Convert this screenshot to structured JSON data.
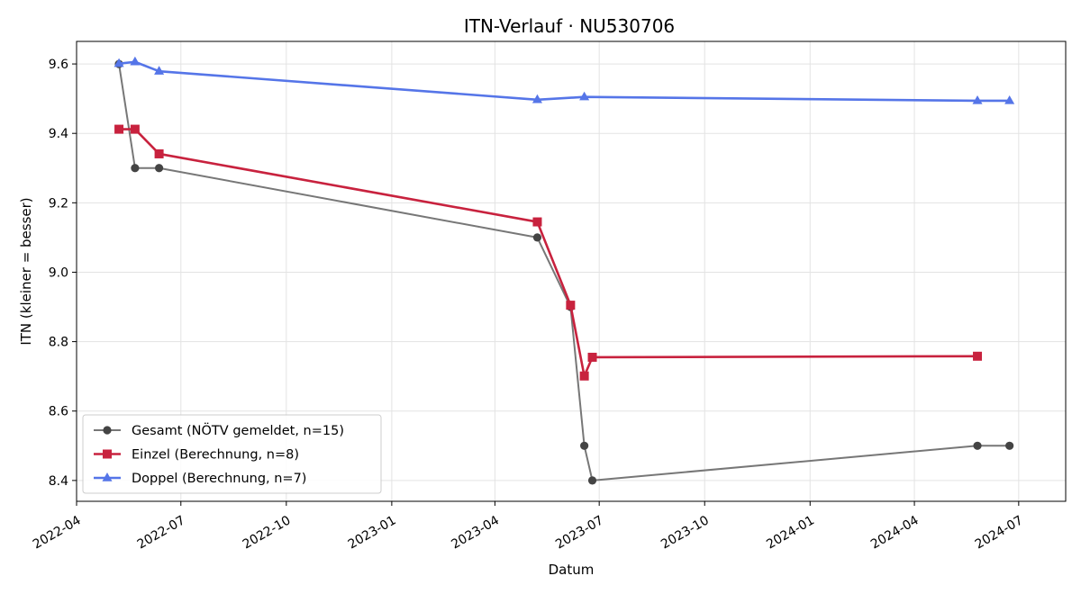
{
  "chart_data": {
    "type": "line",
    "title": "ITN-Verlauf · NU530706",
    "xlabel": "Datum",
    "ylabel": "ITN  (kleiner = besser)",
    "x_axis": "date",
    "xlim": [
      "2022-04-01",
      "2024-08-11"
    ],
    "ylim": [
      8.34,
      9.665
    ],
    "x_ticks": [
      "2022-04",
      "2022-07",
      "2022-10",
      "2023-01",
      "2023-04",
      "2023-07",
      "2023-10",
      "2024-01",
      "2024-04",
      "2024-07"
    ],
    "y_ticks": [
      8.4,
      8.6,
      8.8,
      9.0,
      9.2,
      9.4,
      9.6
    ],
    "grid": true,
    "legend_position": "lower-left",
    "series": [
      {
        "name": "Gesamt (NÖTV gemeldet, n=15)",
        "color": "#777777",
        "marker_color": "#444444",
        "marker": "circle",
        "points": [
          {
            "x": "2022-05-08",
            "y": 9.6
          },
          {
            "x": "2022-05-22",
            "y": 9.3
          },
          {
            "x": "2022-06-12",
            "y": 9.3
          },
          {
            "x": "2023-05-08",
            "y": 9.1
          },
          {
            "x": "2023-06-06",
            "y": 8.9
          },
          {
            "x": "2023-06-18",
            "y": 8.5
          },
          {
            "x": "2023-06-25",
            "y": 8.4
          },
          {
            "x": "2024-05-26",
            "y": 8.5
          },
          {
            "x": "2024-06-23",
            "y": 8.5
          }
        ]
      },
      {
        "name": "Einzel (Berechnung, n=8)",
        "color": "#c8223e",
        "marker_color": "#c8223e",
        "marker": "square",
        "points": [
          {
            "x": "2022-05-08",
            "y": 9.412
          },
          {
            "x": "2022-05-22",
            "y": 9.412
          },
          {
            "x": "2022-06-12",
            "y": 9.341
          },
          {
            "x": "2023-05-08",
            "y": 9.145
          },
          {
            "x": "2023-06-06",
            "y": 8.905
          },
          {
            "x": "2023-06-18",
            "y": 8.701
          },
          {
            "x": "2023-06-25",
            "y": 8.755
          },
          {
            "x": "2024-05-26",
            "y": 8.758
          }
        ]
      },
      {
        "name": "Doppel (Berechnung, n=7)",
        "color": "#5575e8",
        "marker_color": "#5575e8",
        "marker": "triangle",
        "points": [
          {
            "x": "2022-05-08",
            "y": 9.601
          },
          {
            "x": "2022-05-22",
            "y": 9.606
          },
          {
            "x": "2022-06-12",
            "y": 9.579
          },
          {
            "x": "2023-05-08",
            "y": 9.497
          },
          {
            "x": "2023-06-18",
            "y": 9.505
          },
          {
            "x": "2024-05-26",
            "y": 9.494
          },
          {
            "x": "2024-06-23",
            "y": 9.494
          }
        ]
      }
    ]
  }
}
